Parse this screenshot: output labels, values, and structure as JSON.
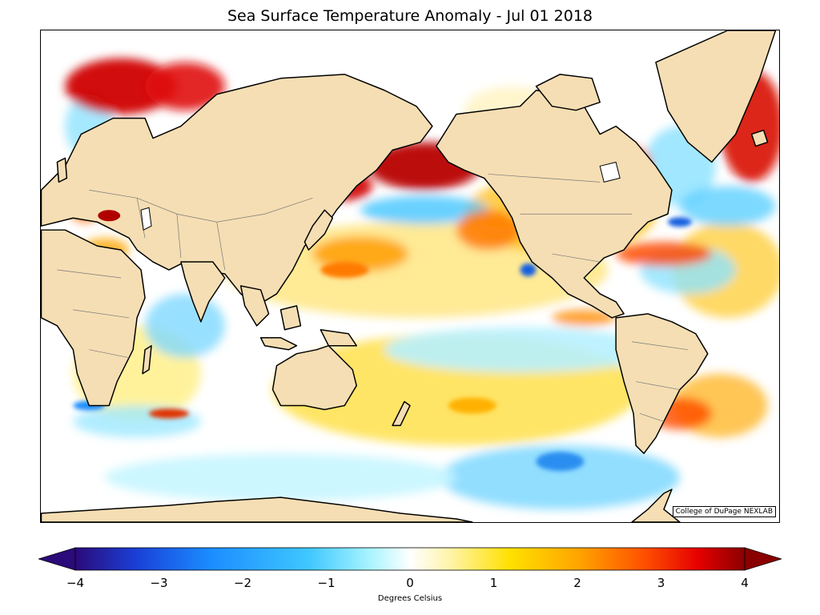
{
  "title": "Sea Surface Temperature Anomaly - Jul 01 2018",
  "credit": "College of DuPage NEXLAB",
  "colorbar": {
    "label": "Degrees Celsius",
    "min": -4,
    "max": 4,
    "extend": "both",
    "ticks": [
      "−4",
      "−3",
      "−2",
      "−1",
      "0",
      "1",
      "2",
      "3",
      "4"
    ],
    "tick_values": [
      -4,
      -3,
      -2,
      -1,
      0,
      1,
      2,
      3,
      4
    ],
    "colors": [
      "#2b0a7a",
      "#1a3fd6",
      "#1a8cff",
      "#40c8ff",
      "#a8f4ff",
      "#ffffff",
      "#fff4a8",
      "#ffe000",
      "#ffa600",
      "#ff5000",
      "#e60000",
      "#8a0000"
    ]
  },
  "colors": {
    "land": "#f5deb3",
    "coast": "#000000",
    "borders": "#7a7a7a",
    "warm_strong": "#c80000",
    "warm_mid": "#ff8c00",
    "warm_weak": "#ffe14a",
    "cool_weak": "#b7f1ff",
    "cool_mid": "#45c6ff",
    "cool_strong": "#1560e0"
  }
}
